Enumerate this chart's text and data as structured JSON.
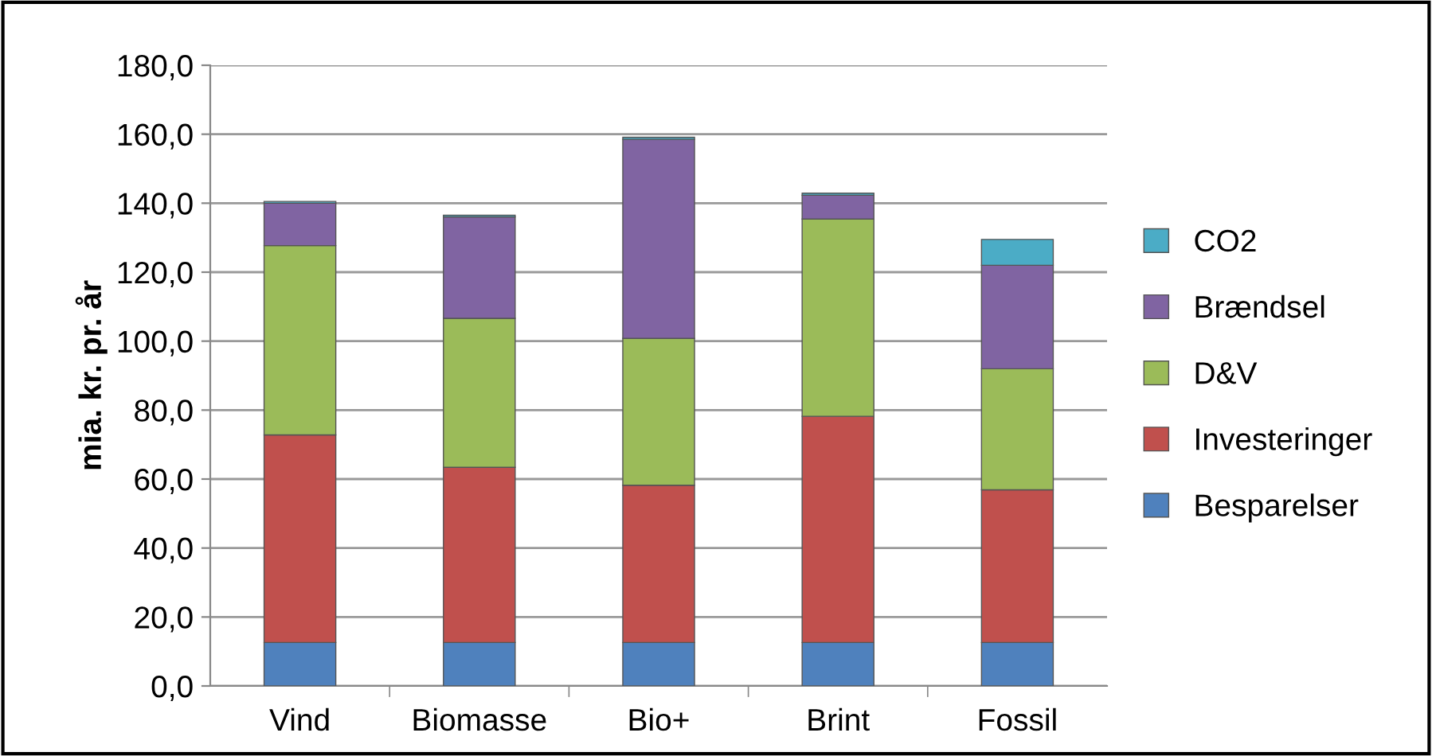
{
  "chart_data": {
    "type": "bar",
    "stacked": true,
    "ylabel": "mia. kr. pr. år",
    "categories": [
      "Vind",
      "Biomasse",
      "Bio+",
      "Brint",
      "Fossil"
    ],
    "series": [
      {
        "name": "Besparelser",
        "color": "#4f81bd",
        "values": [
          12.6,
          12.6,
          12.6,
          12.6,
          12.6
        ]
      },
      {
        "name": "Investeringer",
        "color": "#c0504d",
        "values": [
          60.2,
          50.8,
          45.6,
          65.6,
          44.3
        ]
      },
      {
        "name": "D&V",
        "color": "#9bbb59",
        "values": [
          54.9,
          43.2,
          42.6,
          57.2,
          35.1
        ]
      },
      {
        "name": "Brændsel",
        "color": "#8064a2",
        "values": [
          12.3,
          29.4,
          57.7,
          6.9,
          30.0
        ]
      },
      {
        "name": "CO2",
        "color": "#4bacc6",
        "values": [
          0.5,
          0.5,
          0.6,
          0.6,
          7.5
        ]
      }
    ],
    "ylim": [
      0,
      180
    ],
    "yticks": [
      {
        "value": 0,
        "label": "0,0"
      },
      {
        "value": 20,
        "label": "20,0"
      },
      {
        "value": 40,
        "label": "40,0"
      },
      {
        "value": 60,
        "label": "60,0"
      },
      {
        "value": 80,
        "label": "80,0"
      },
      {
        "value": 100,
        "label": "100,0"
      },
      {
        "value": 120,
        "label": "120,0"
      },
      {
        "value": 140,
        "label": "140,0"
      },
      {
        "value": 160,
        "label": "160,0"
      },
      {
        "value": 180,
        "label": "180,0"
      }
    ],
    "grid": "y",
    "legend": "right"
  }
}
